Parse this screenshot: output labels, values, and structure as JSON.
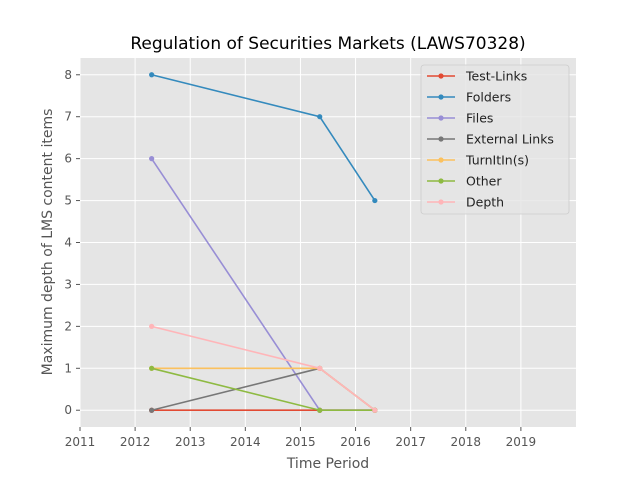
{
  "chart_data": {
    "type": "line",
    "title": "Regulation of Securities Markets (LAWS70328)",
    "xlabel": "Time Period",
    "ylabel": "Maximum depth of LMS content items",
    "xlim": [
      2011,
      2020
    ],
    "ylim": [
      -0.4,
      8.4
    ],
    "x_ticks": [
      "2011",
      "2012",
      "2013",
      "2014",
      "2015",
      "2016",
      "2017",
      "2018",
      "2019"
    ],
    "y_ticks": [
      "0",
      "1",
      "2",
      "3",
      "4",
      "5",
      "6",
      "7",
      "8"
    ],
    "x": [
      2012.3,
      2015.35,
      2016.35
    ],
    "grid": true,
    "legend_position": "top-right",
    "series": [
      {
        "name": "Test-Links",
        "color": "#E24A33",
        "values": [
          0,
          0,
          0
        ]
      },
      {
        "name": "Folders",
        "color": "#348ABD",
        "values": [
          8,
          7,
          5
        ]
      },
      {
        "name": "Files",
        "color": "#988ED5",
        "values": [
          6,
          0,
          0
        ]
      },
      {
        "name": "External Links",
        "color": "#777777",
        "values": [
          0,
          1,
          0
        ]
      },
      {
        "name": "TurnItIn(s)",
        "color": "#FBC15E",
        "values": [
          1,
          1,
          0
        ]
      },
      {
        "name": "Other",
        "color": "#8EBA42",
        "values": [
          1,
          0,
          0
        ]
      },
      {
        "name": "Depth",
        "color": "#FFB5B8",
        "values": [
          2,
          1,
          0
        ]
      }
    ]
  }
}
